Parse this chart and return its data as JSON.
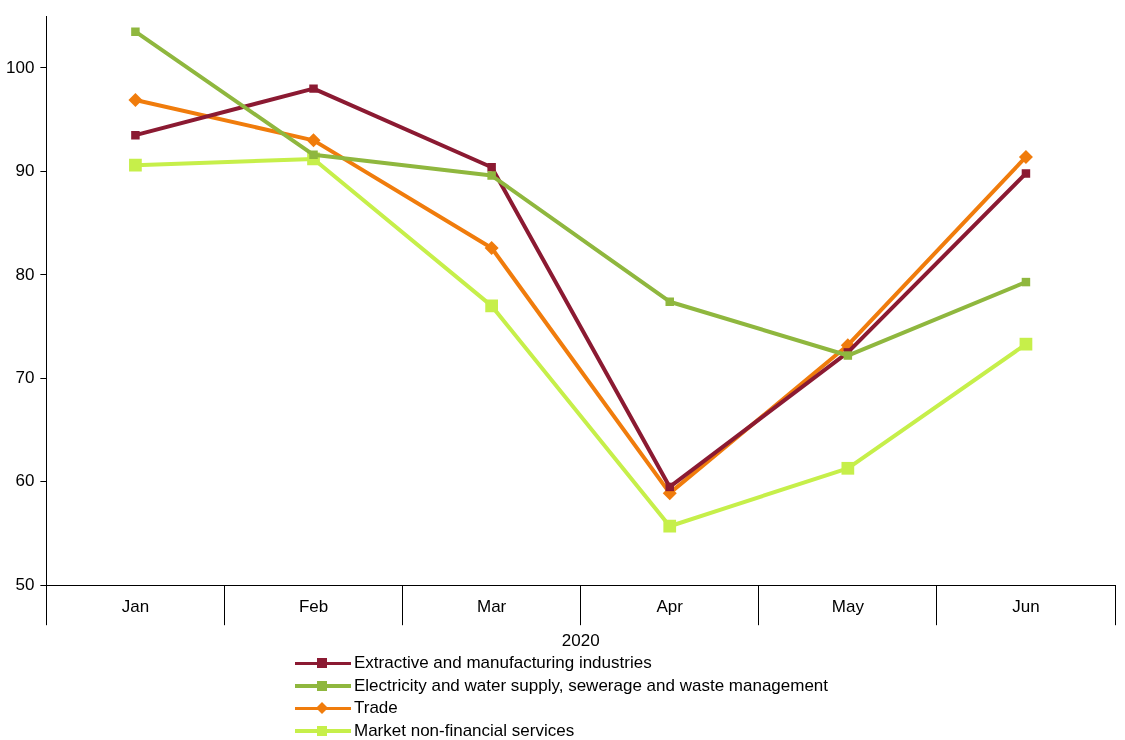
{
  "chart_data": {
    "type": "line",
    "xlabel": "2020",
    "categories": [
      "Jan",
      "Feb",
      "Mar",
      "Apr",
      "May",
      "Jun"
    ],
    "series": [
      {
        "name": "Extractive and manufacturing industries",
        "color": "#8b1a32",
        "marker": "square",
        "values": [
          93.5,
          98.0,
          90.4,
          59.5,
          72.5,
          89.8
        ]
      },
      {
        "name": "Electricity and water supply, sewerage and waste management",
        "color": "#8fb73e",
        "marker": "square",
        "values": [
          103.5,
          91.6,
          89.6,
          77.4,
          72.2,
          79.3
        ]
      },
      {
        "name": "Trade",
        "color": "#f07c0c",
        "marker": "diamond",
        "values": [
          96.9,
          93.0,
          82.6,
          58.9,
          73.2,
          91.4
        ]
      },
      {
        "name": "Market non-financial services",
        "color": "#c6ef4a",
        "marker": "square",
        "values": [
          90.6,
          91.2,
          77.0,
          55.7,
          61.3,
          73.3
        ]
      }
    ],
    "ylim": [
      50,
      105
    ],
    "yticks": [
      50,
      60,
      70,
      80,
      90,
      100
    ],
    "grid": false,
    "legend": "bottom",
    "line_style": "solid"
  }
}
